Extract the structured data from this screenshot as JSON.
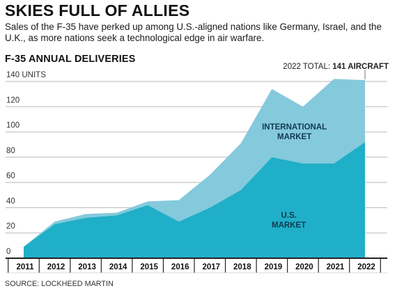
{
  "headline": "SKIES FULL OF ALLIES",
  "subtitle": "Sales of the F-35 have perked up among U.S.-aligned nations like Germany, Israel, and the U.K., as more nations seek a technological edge in air warfare.",
  "source": "SOURCE: LOCKHEED MARTIN",
  "colors": {
    "us_market": "#20afc8",
    "international_market": "#85c9dc",
    "grid": "#b8b8b8",
    "axis": "#222222"
  },
  "chart_data": {
    "type": "area",
    "title": "F-35 ANNUAL DELIVERIES",
    "ylabel_unit": "UNITS",
    "ylim": [
      0,
      140
    ],
    "yticks": [
      0,
      20,
      40,
      60,
      80,
      100,
      120,
      140
    ],
    "grid": true,
    "stacked": true,
    "x": [
      "2011",
      "2012",
      "2013",
      "2014",
      "2015",
      "2016",
      "2017",
      "2018",
      "2019",
      "2020",
      "2021",
      "2022"
    ],
    "series": [
      {
        "name": "U.S. MARKET",
        "key": "us_market",
        "values": [
          9,
          27,
          32,
          34,
          42,
          29,
          40,
          54,
          80,
          75,
          75,
          92
        ]
      },
      {
        "name": "INTERNATIONAL MARKET",
        "key": "international_market",
        "values": [
          0,
          2,
          3,
          2,
          3,
          17,
          26,
          37,
          54,
          45,
          67,
          49
        ]
      }
    ],
    "totals": [
      9,
      29,
      35,
      36,
      45,
      46,
      66,
      91,
      134,
      120,
      142,
      141
    ],
    "annotation": {
      "prefix": "2022 TOTAL:",
      "value": "141 AIRCRAFT"
    },
    "area_labels": [
      {
        "series": "international_market",
        "lines": [
          "INTERNATIONAL",
          "MARKET"
        ]
      },
      {
        "series": "us_market",
        "lines": [
          "U.S.",
          "MARKET"
        ]
      }
    ]
  }
}
